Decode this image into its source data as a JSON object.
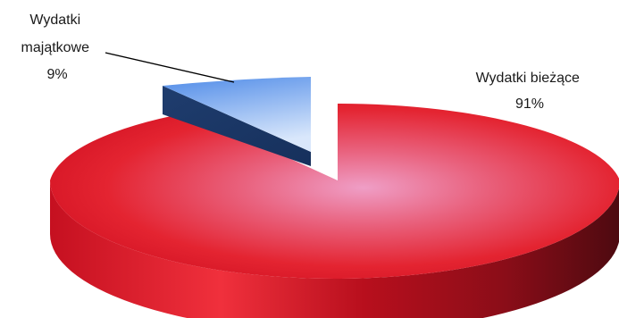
{
  "chart_data": {
    "type": "pie",
    "style": "3d-exploded",
    "slices": [
      {
        "label_lines": [
          "Wydatki bieżące"
        ],
        "value": 91,
        "percent_label": "91%",
        "color": "#e8192c",
        "exploded": false
      },
      {
        "label_lines": [
          "Wydatki",
          "majątkowe"
        ],
        "value": 9,
        "percent_label": "9%",
        "color": "#5f96e6",
        "exploded": true
      }
    ]
  }
}
